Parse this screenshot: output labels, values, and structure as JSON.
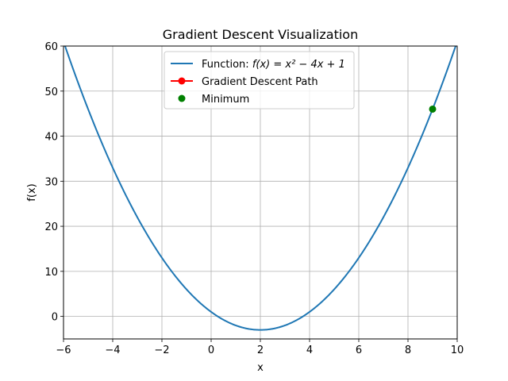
{
  "chart_data": {
    "type": "line",
    "title": "Gradient Descent Visualization",
    "xlabel": "x",
    "ylabel": "f(x)",
    "xlim": [
      -6,
      10
    ],
    "ylim": [
      -5,
      60
    ],
    "xticks": [
      -6,
      -4,
      -2,
      0,
      2,
      4,
      6,
      8,
      10
    ],
    "yticks": [
      0,
      10,
      20,
      30,
      40,
      50,
      60
    ],
    "xtick_labels": [
      "−6",
      "−4",
      "−2",
      "0",
      "2",
      "4",
      "6",
      "8",
      "10"
    ],
    "ytick_labels": [
      "0",
      "10",
      "20",
      "30",
      "40",
      "50",
      "60"
    ],
    "grid": true,
    "legend_placement": "top-center",
    "function": {
      "coefficients": [
        1,
        -4,
        1
      ],
      "legend_prefix": "Function: ",
      "legend_math": "f(x) = x² − 4x + 1",
      "color": "#1f77b4"
    },
    "series": [
      {
        "name": "Gradient Descent Path",
        "type": "line+marker",
        "color": "#ff0000",
        "points": []
      },
      {
        "name": "Minimum",
        "type": "scatter",
        "color": "#008000",
        "points": [
          [
            9,
            46
          ]
        ]
      }
    ]
  }
}
